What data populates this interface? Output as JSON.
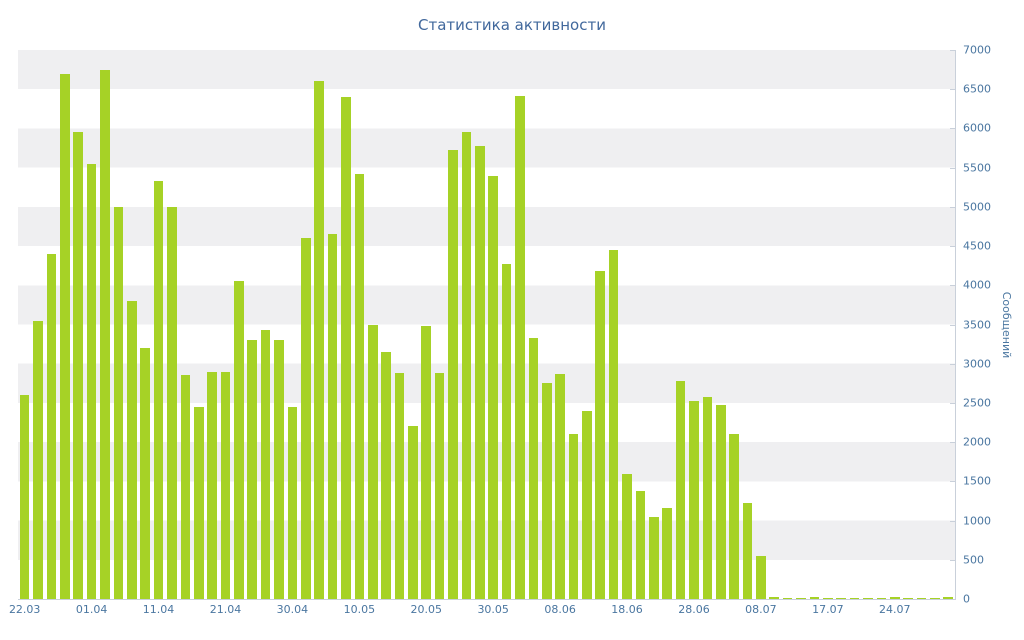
{
  "chart": {
    "title": "Статистика активности",
    "y_axis_title": "Сообщений"
  },
  "chart_data": {
    "type": "bar",
    "title": "Статистика активности",
    "xlabel": "",
    "ylabel": "Сообщений",
    "ylim": [
      0,
      7000
    ],
    "y_tick_step": 500,
    "y_ticks": [
      0,
      500,
      1000,
      1500,
      2000,
      2500,
      3000,
      3500,
      4000,
      4500,
      5000,
      5500,
      6000,
      6500,
      7000
    ],
    "x_tick_labels": [
      "22.03",
      "01.04",
      "11.04",
      "21.04",
      "30.04",
      "10.05",
      "20.05",
      "30.05",
      "08.06",
      "18.06",
      "28.06",
      "08.07",
      "17.07",
      "24.07"
    ],
    "x_tick_every": 5,
    "values": [
      2600,
      3550,
      4400,
      6700,
      5950,
      5550,
      6750,
      5000,
      3800,
      3200,
      5330,
      5000,
      2850,
      2450,
      2900,
      2900,
      4050,
      3300,
      3430,
      3300,
      2450,
      4600,
      6600,
      4650,
      6400,
      5420,
      3500,
      3150,
      2880,
      2200,
      3480,
      2880,
      5730,
      5960,
      5780,
      5400,
      4270,
      6420,
      3330,
      2750,
      2870,
      2110,
      2400,
      4180,
      4450,
      1600,
      1380,
      1050,
      1160,
      2780,
      2520,
      2580,
      2470,
      2100,
      1220,
      550,
      25,
      15,
      10,
      20,
      15,
      10,
      10,
      15,
      10,
      20,
      15,
      10,
      15,
      25
    ],
    "legend": "none",
    "grid": "alternating-horizontal-bands",
    "bar_color": "#a6d226",
    "band_color": "#efeff1",
    "text_color": "#4a76a0",
    "axis_color": "#c9d0da",
    "title_color": "#41689c"
  }
}
